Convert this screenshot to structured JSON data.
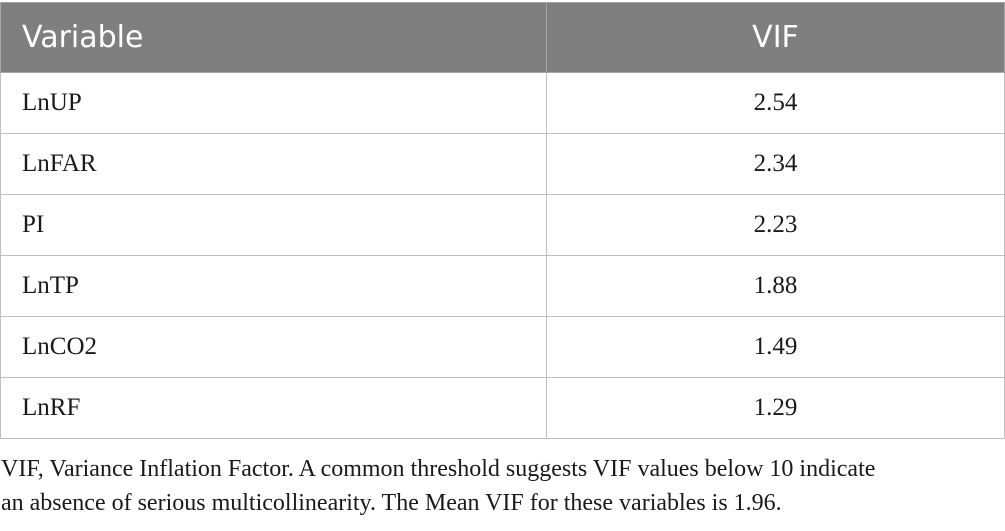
{
  "table": {
    "headers": {
      "variable": "Variable",
      "vif": "VIF"
    },
    "rows": [
      {
        "variable": "LnUP",
        "vif": "2.54"
      },
      {
        "variable": "LnFAR",
        "vif": "2.34"
      },
      {
        "variable": "PI",
        "vif": "2.23"
      },
      {
        "variable": "LnTP",
        "vif": "1.88"
      },
      {
        "variable": "LnCO2",
        "vif": "1.49"
      },
      {
        "variable": "LnRF",
        "vif": "1.29"
      }
    ]
  },
  "footnote": {
    "line1": "VIF, Variance Inflation Factor. A common threshold suggests VIF values below 10 indicate",
    "line2": "an absence of serious multicollinearity. The Mean VIF for these variables is 1.96."
  },
  "colors": {
    "header_bg": "#7f7f7f",
    "header_text": "#ffffff",
    "border": "#bfbfbf"
  }
}
